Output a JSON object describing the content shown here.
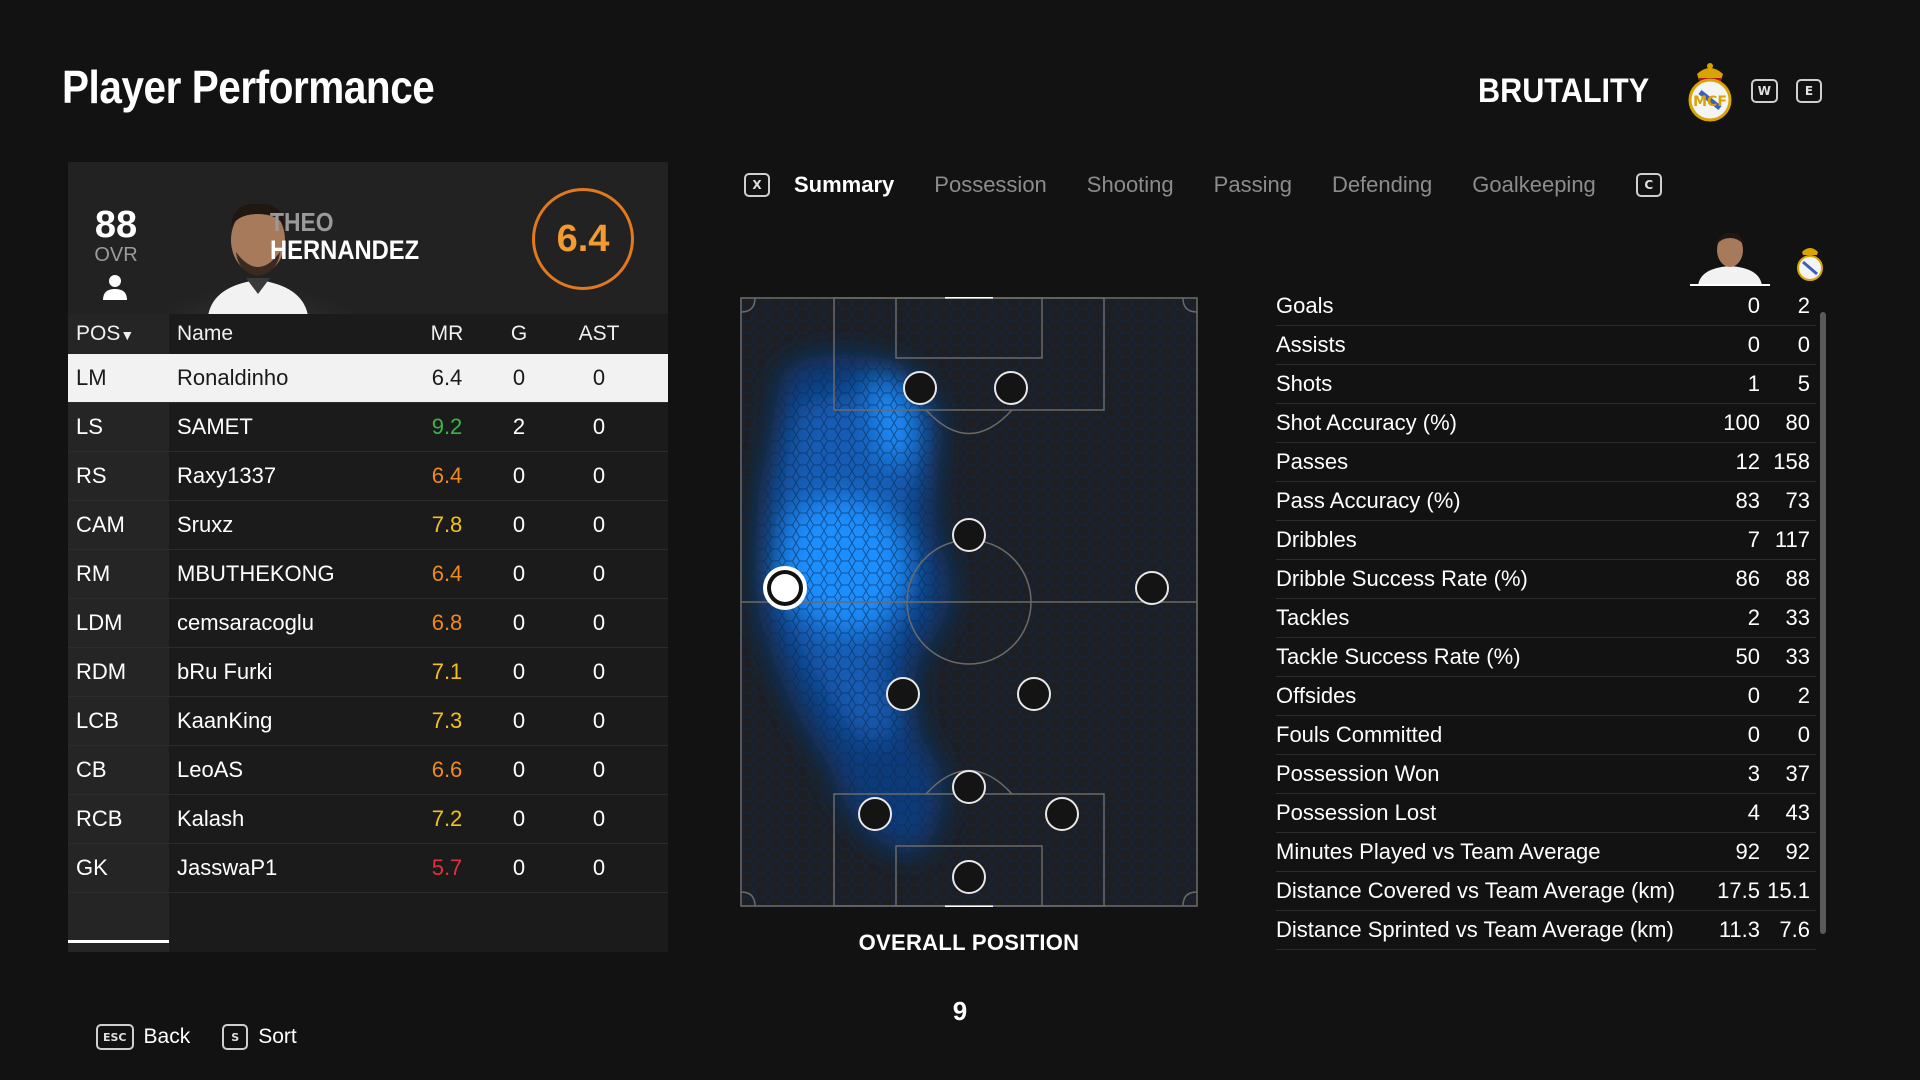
{
  "page": {
    "title": "Player Performance",
    "page_number": "9"
  },
  "team": {
    "name": "BRUTALITY",
    "key_prev": "W",
    "key_next": "E"
  },
  "player": {
    "ovr_value": "88",
    "ovr_label": "OVR",
    "first_name": "THEO",
    "last_name": "HERNANDEZ",
    "match_rating": "6.4"
  },
  "squad": {
    "headers": {
      "pos": "POS",
      "name": "Name",
      "mr": "MR",
      "g": "G",
      "ast": "AST"
    },
    "rows": [
      {
        "pos": "LM",
        "name": "Ronaldinho",
        "mr": "6.4",
        "g": "0",
        "ast": "0",
        "mr_color": "#1a1a1a"
      },
      {
        "pos": "LS",
        "name": "SAMET",
        "mr": "9.2",
        "g": "2",
        "ast": "0",
        "mr_color": "#3bb54a"
      },
      {
        "pos": "RS",
        "name": "Raxy1337",
        "mr": "6.4",
        "g": "0",
        "ast": "0",
        "mr_color": "#f08a1c"
      },
      {
        "pos": "CAM",
        "name": "Sruxz",
        "mr": "7.8",
        "g": "0",
        "ast": "0",
        "mr_color": "#f2c21a"
      },
      {
        "pos": "RM",
        "name": "MBUTHEKONG",
        "mr": "6.4",
        "g": "0",
        "ast": "0",
        "mr_color": "#f08a1c"
      },
      {
        "pos": "LDM",
        "name": "cemsaracoglu",
        "mr": "6.8",
        "g": "0",
        "ast": "0",
        "mr_color": "#f08a1c"
      },
      {
        "pos": "RDM",
        "name": "bRu Furki",
        "mr": "7.1",
        "g": "0",
        "ast": "0",
        "mr_color": "#f2c21a"
      },
      {
        "pos": "LCB",
        "name": "KaanKing",
        "mr": "7.3",
        "g": "0",
        "ast": "0",
        "mr_color": "#f2c21a"
      },
      {
        "pos": "CB",
        "name": "LeoAS",
        "mr": "6.6",
        "g": "0",
        "ast": "0",
        "mr_color": "#f08a1c"
      },
      {
        "pos": "RCB",
        "name": "Kalash",
        "mr": "7.2",
        "g": "0",
        "ast": "0",
        "mr_color": "#f2c21a"
      },
      {
        "pos": "GK",
        "name": "JasswaP1",
        "mr": "5.7",
        "g": "0",
        "ast": "0",
        "mr_color": "#e0303f"
      }
    ]
  },
  "tabs": {
    "key_left": "X",
    "key_right": "C",
    "items": [
      {
        "label": "Summary",
        "active": true
      },
      {
        "label": "Possession",
        "active": false
      },
      {
        "label": "Shooting",
        "active": false
      },
      {
        "label": "Passing",
        "active": false
      },
      {
        "label": "Defending",
        "active": false
      },
      {
        "label": "Goalkeeping",
        "active": false
      }
    ]
  },
  "pitch": {
    "label": "OVERALL POSITION"
  },
  "stats": [
    {
      "label": "Goals",
      "player": "0",
      "team": "2"
    },
    {
      "label": "Assists",
      "player": "0",
      "team": "0"
    },
    {
      "label": "Shots",
      "player": "1",
      "team": "5"
    },
    {
      "label": "Shot Accuracy (%)",
      "player": "100",
      "team": "80"
    },
    {
      "label": "Passes",
      "player": "12",
      "team": "158"
    },
    {
      "label": "Pass Accuracy (%)",
      "player": "83",
      "team": "73"
    },
    {
      "label": "Dribbles",
      "player": "7",
      "team": "117"
    },
    {
      "label": "Dribble Success Rate (%)",
      "player": "86",
      "team": "88"
    },
    {
      "label": "Tackles",
      "player": "2",
      "team": "33"
    },
    {
      "label": "Tackle Success Rate (%)",
      "player": "50",
      "team": "33"
    },
    {
      "label": "Offsides",
      "player": "0",
      "team": "2"
    },
    {
      "label": "Fouls Committed",
      "player": "0",
      "team": "0"
    },
    {
      "label": "Possession Won",
      "player": "3",
      "team": "37"
    },
    {
      "label": "Possession Lost",
      "player": "4",
      "team": "43"
    },
    {
      "label": "Minutes Played vs Team Average",
      "player": "92",
      "team": "92"
    },
    {
      "label": "Distance Covered vs Team Average (km)",
      "player": "17.5",
      "team": "15.1"
    },
    {
      "label": "Distance Sprinted vs Team Average (km)",
      "player": "11.3",
      "team": "7.6"
    }
  ],
  "footer": {
    "back_key": "ESC",
    "back_label": "Back",
    "sort_key": "S",
    "sort_label": "Sort"
  },
  "colors": {
    "accent_orange": "#e27a1d",
    "heatmap_blue": "#1a8fff",
    "selected_row": "#f2f2f2"
  }
}
